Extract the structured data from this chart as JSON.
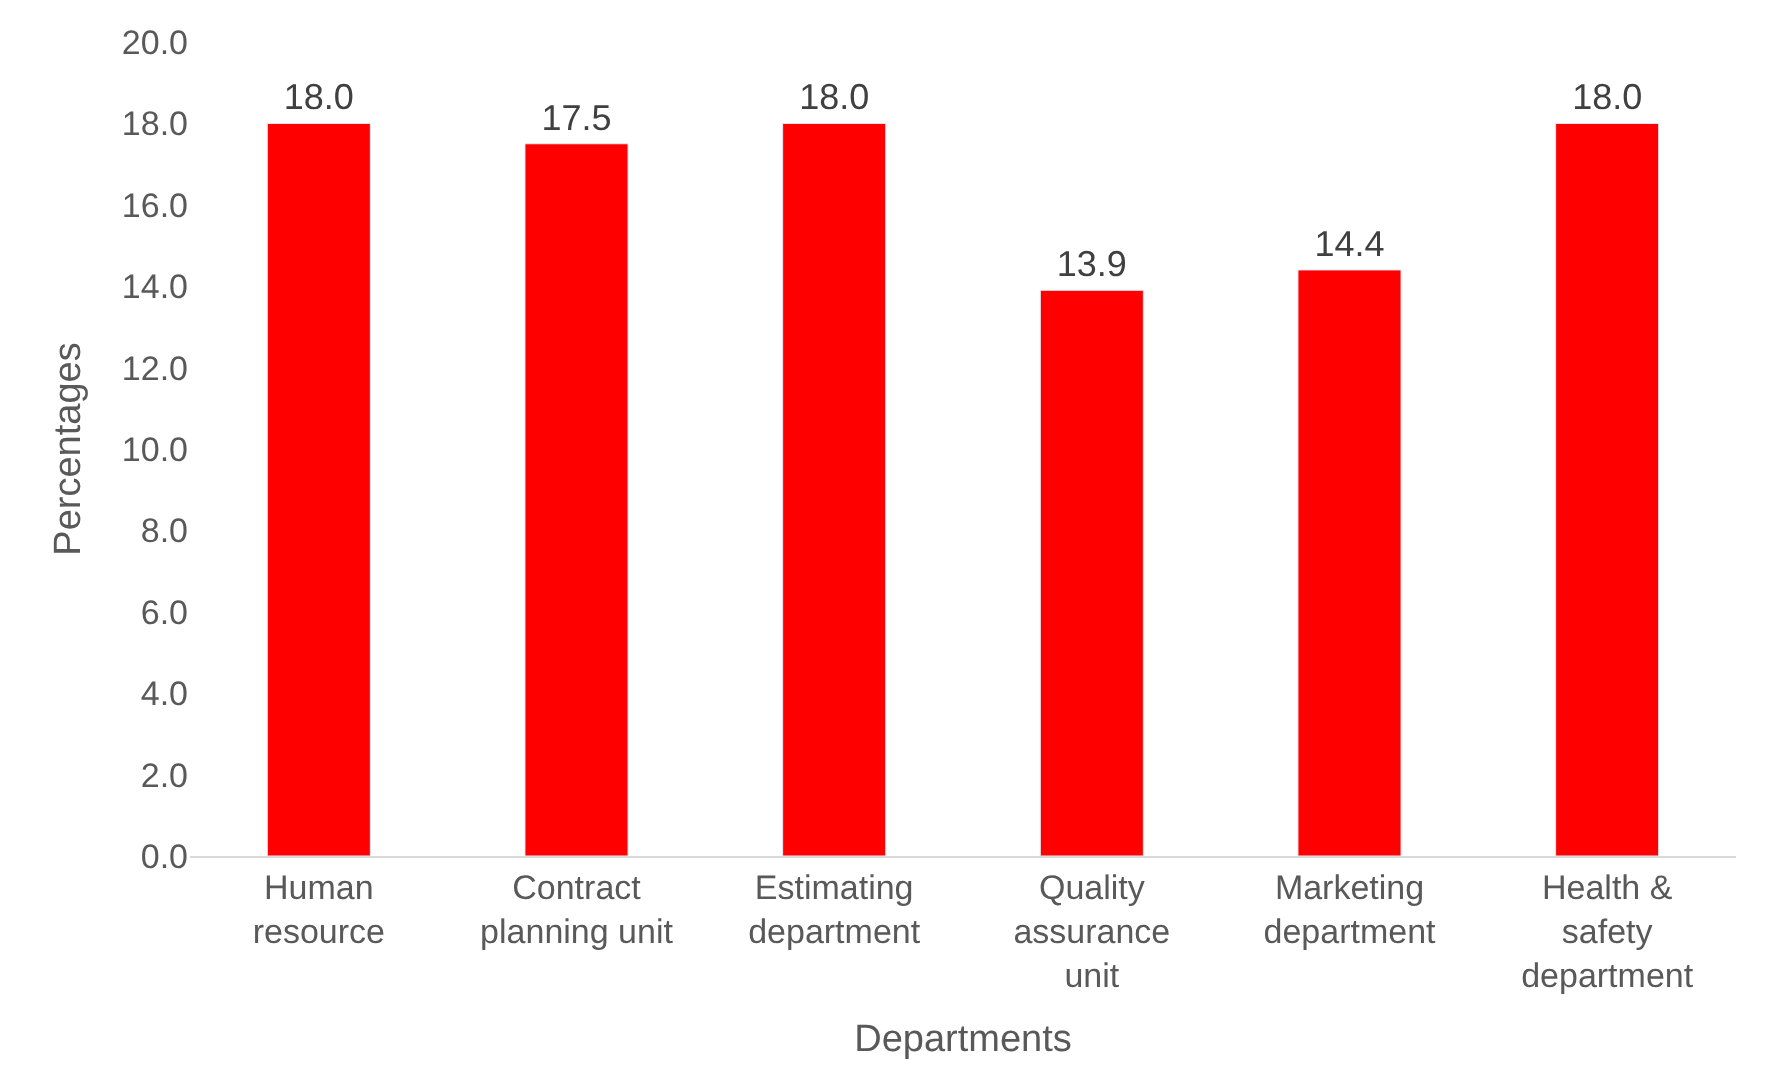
{
  "chart_data": {
    "type": "bar",
    "xlabel": "Departments",
    "ylabel": "Percentages",
    "categories": [
      "Human resource",
      "Contract planning unit",
      "Estimating department",
      "Quality assurance unit",
      "Marketing department",
      "Health & safety department"
    ],
    "values": [
      18.0,
      17.5,
      18.0,
      13.9,
      14.4,
      18.0
    ],
    "value_labels": [
      "18.0",
      "17.5",
      "18.0",
      "13.9",
      "14.4",
      "18.0"
    ],
    "color": "#ff0000",
    "legend": false,
    "ylim": [
      0,
      20
    ],
    "yticks": [
      {
        "value": 0,
        "label": "0.0"
      },
      {
        "value": 2,
        "label": "2.0"
      },
      {
        "value": 4,
        "label": "4.0"
      },
      {
        "value": 6,
        "label": "6.0"
      },
      {
        "value": 8,
        "label": "8.0"
      },
      {
        "value": 10,
        "label": "10.0"
      },
      {
        "value": 12,
        "label": "12.0"
      },
      {
        "value": 14,
        "label": "14.0"
      },
      {
        "value": 16,
        "label": "16.0"
      },
      {
        "value": 18,
        "label": "18.0"
      },
      {
        "value": 20,
        "label": "20.0"
      }
    ]
  }
}
